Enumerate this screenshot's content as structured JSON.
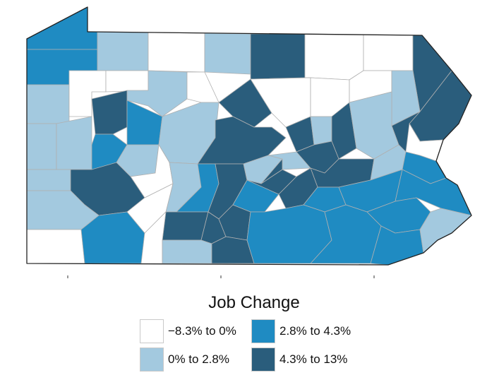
{
  "colors": {
    "neg": "#ffffff",
    "low": "#a3c9df",
    "mid": "#1f8bc2",
    "high": "#2a5d7c",
    "county_border": "#b0b0b0",
    "state_border": "#222222"
  },
  "legend": {
    "title": "Job Change",
    "items": [
      {
        "key": "neg",
        "label": "−8.3% to 0%"
      },
      {
        "key": "mid",
        "label": "2.8% to 4.3%"
      },
      {
        "key": "low",
        "label": "0% to 2.8%"
      },
      {
        "key": "high",
        "label": "4.3% to 13%"
      }
    ]
  },
  "map": {
    "region": "Pennsylvania",
    "counties": [
      {
        "id": "erie-n",
        "cat": "mid"
      },
      {
        "id": "erie",
        "cat": "mid"
      },
      {
        "id": "warren",
        "cat": "low"
      },
      {
        "id": "mckean",
        "cat": "neg"
      },
      {
        "id": "potter",
        "cat": "low"
      },
      {
        "id": "tioga",
        "cat": "high"
      },
      {
        "id": "bradford",
        "cat": "neg"
      },
      {
        "id": "susquehanna",
        "cat": "neg"
      },
      {
        "id": "wayne",
        "cat": "high"
      },
      {
        "id": "crawford",
        "cat": "low"
      },
      {
        "id": "venango",
        "cat": "neg"
      },
      {
        "id": "forest",
        "cat": "neg"
      },
      {
        "id": "elk",
        "cat": "low"
      },
      {
        "id": "cameron",
        "cat": "neg"
      },
      {
        "id": "clinton",
        "cat": "high"
      },
      {
        "id": "lycoming",
        "cat": "neg"
      },
      {
        "id": "sullivan",
        "cat": "neg"
      },
      {
        "id": "wyoming",
        "cat": "neg"
      },
      {
        "id": "lackawanna",
        "cat": "low"
      },
      {
        "id": "pike",
        "cat": "high"
      },
      {
        "id": "mercer",
        "cat": "low"
      },
      {
        "id": "clarion",
        "cat": "high"
      },
      {
        "id": "jefferson",
        "cat": "mid"
      },
      {
        "id": "clearfield",
        "cat": "low"
      },
      {
        "id": "centre",
        "cat": "high"
      },
      {
        "id": "union",
        "cat": "high"
      },
      {
        "id": "montour",
        "cat": "low"
      },
      {
        "id": "columbia",
        "cat": "high"
      },
      {
        "id": "luzerne",
        "cat": "low"
      },
      {
        "id": "monroe",
        "cat": "high"
      },
      {
        "id": "northampton",
        "cat": "neg"
      },
      {
        "id": "lawrence",
        "cat": "low"
      },
      {
        "id": "butler",
        "cat": "mid"
      },
      {
        "id": "armstrong",
        "cat": "low"
      },
      {
        "id": "indiana",
        "cat": "neg"
      },
      {
        "id": "cambria",
        "cat": "low"
      },
      {
        "id": "blair",
        "cat": "mid"
      },
      {
        "id": "huntingdon",
        "cat": "high"
      },
      {
        "id": "mifflin",
        "cat": "low"
      },
      {
        "id": "snyder",
        "cat": "low"
      },
      {
        "id": "northumberland",
        "cat": "high"
      },
      {
        "id": "schuylkill",
        "cat": "high"
      },
      {
        "id": "carbon",
        "cat": "low"
      },
      {
        "id": "lehigh",
        "cat": "mid"
      },
      {
        "id": "beaver",
        "cat": "low"
      },
      {
        "id": "allegheny",
        "cat": "high"
      },
      {
        "id": "westmoreland",
        "cat": "neg"
      },
      {
        "id": "bedford",
        "cat": "high"
      },
      {
        "id": "fulton",
        "cat": "high"
      },
      {
        "id": "franklin",
        "cat": "high"
      },
      {
        "id": "cumberland",
        "cat": "mid"
      },
      {
        "id": "perry",
        "cat": "high"
      },
      {
        "id": "juniata",
        "cat": "high"
      },
      {
        "id": "dauphin",
        "cat": "high"
      },
      {
        "id": "lebanon",
        "cat": "mid"
      },
      {
        "id": "berks",
        "cat": "mid"
      },
      {
        "id": "bucks",
        "cat": "mid"
      },
      {
        "id": "washington",
        "cat": "low"
      },
      {
        "id": "greene",
        "cat": "neg"
      },
      {
        "id": "fayette",
        "cat": "mid"
      },
      {
        "id": "somerset",
        "cat": "neg"
      },
      {
        "id": "adams",
        "cat": "low"
      },
      {
        "id": "york",
        "cat": "high"
      },
      {
        "id": "lancaster",
        "cat": "mid"
      },
      {
        "id": "chester",
        "cat": "mid"
      },
      {
        "id": "montgomery",
        "cat": "mid"
      },
      {
        "id": "delaware",
        "cat": "mid"
      },
      {
        "id": "philadelphia",
        "cat": "low"
      }
    ]
  }
}
